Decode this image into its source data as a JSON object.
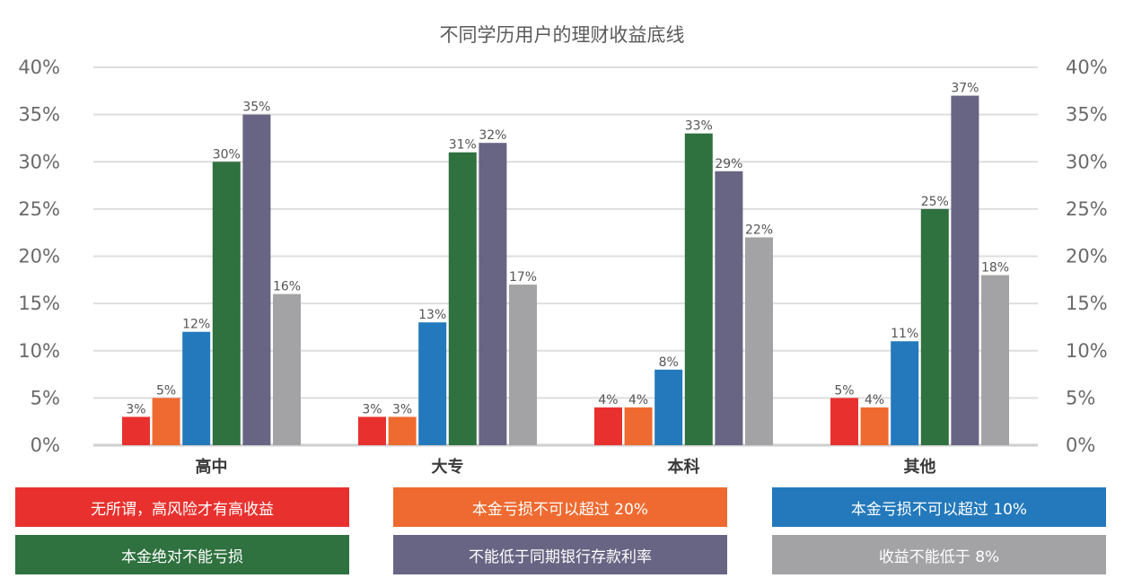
{
  "chart_data": {
    "type": "bar",
    "title": "不同学历用户的理财收益底线",
    "categories": [
      "高中",
      "大专",
      "本科",
      "其他"
    ],
    "ylim": [
      0,
      40
    ],
    "yticks": [
      "0%",
      "5%",
      "10%",
      "15%",
      "20%",
      "25%",
      "30%",
      "35%",
      "40%"
    ],
    "grid": true,
    "legend_position": "bottom",
    "series": [
      {
        "name": "无所谓，高风险才有高收益",
        "color": "#e8312e",
        "values": [
          3,
          3,
          4,
          5
        ],
        "labels": [
          "3%",
          "3%",
          "4%",
          "5%"
        ]
      },
      {
        "name": "本金亏损不可以超过 20%",
        "color": "#ee6a30",
        "values": [
          5,
          3,
          4,
          4
        ],
        "labels": [
          "5%",
          "3%",
          "4%",
          "4%"
        ]
      },
      {
        "name": "本金亏损不可以超过 10%",
        "color": "#2379bb",
        "values": [
          12,
          13,
          8,
          11
        ],
        "labels": [
          "12%",
          "13%",
          "8%",
          "11%"
        ]
      },
      {
        "name": "本金绝对不能亏损",
        "color": "#2f713f",
        "values": [
          30,
          31,
          33,
          25
        ],
        "labels": [
          "30%",
          "31%",
          "33%",
          "25%"
        ]
      },
      {
        "name": "不能低于同期银行存款利率",
        "color": "#686483",
        "values": [
          35,
          32,
          29,
          37
        ],
        "labels": [
          "35%",
          "32%",
          "29%",
          "37%"
        ]
      },
      {
        "name": "收益不能低于 8%",
        "color": "#a3a3a6",
        "values": [
          16,
          17,
          22,
          18
        ],
        "labels": [
          "16%",
          "17%",
          "22%",
          "18%"
        ]
      }
    ]
  }
}
